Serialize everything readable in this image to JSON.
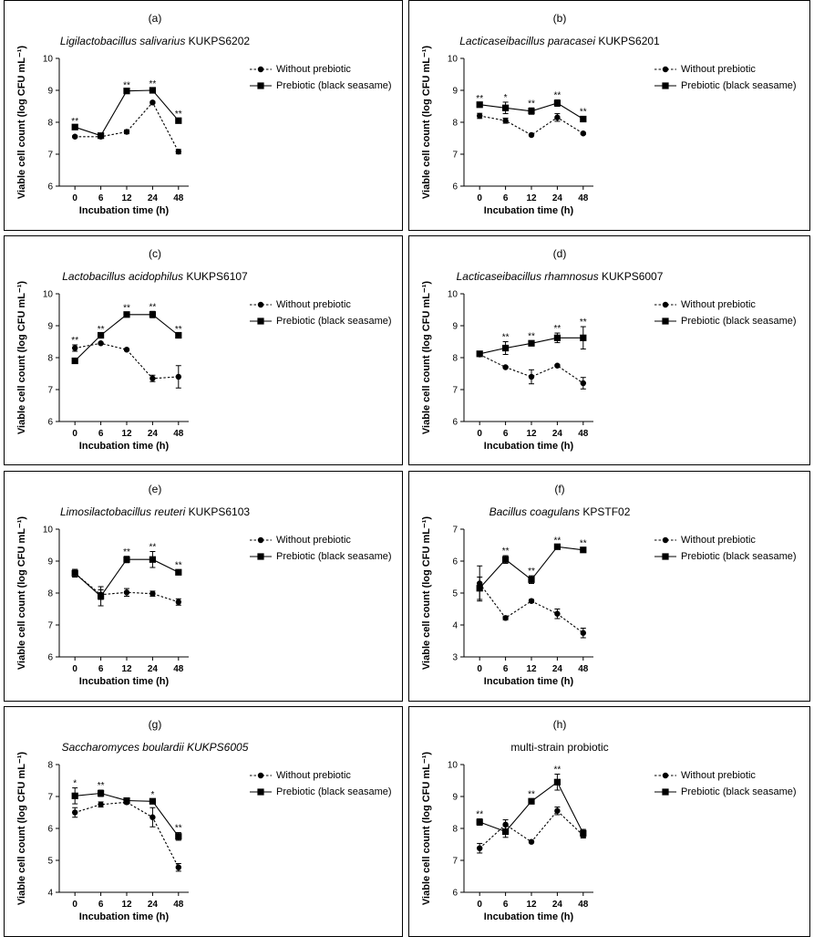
{
  "chart_data": [
    {
      "panel": "(a)",
      "species": "Ligilactobacillus salivarius",
      "strain": "KUKPS6202",
      "type": "line",
      "x": [
        "0",
        "6",
        "12",
        "24",
        "48"
      ],
      "xlabel": "Incubation time (h)",
      "ylabel": "Viable cell count (log CFU mL⁻¹)",
      "ylim": [
        6,
        10
      ],
      "yticks": [
        6,
        7,
        8,
        9,
        10
      ],
      "legend_position": "top-right",
      "series": [
        {
          "name": "Without prebiotic",
          "style": "dashed",
          "marker": "circle",
          "values": [
            7.55,
            7.55,
            7.7,
            8.62,
            7.08
          ],
          "errors": [
            0.03,
            0.03,
            0.06,
            0.03,
            0.07
          ]
        },
        {
          "name": "Prebiotic (black seasame)",
          "style": "solid",
          "marker": "square",
          "values": [
            7.85,
            7.58,
            8.98,
            9.0,
            8.05
          ],
          "errors": [
            0.04,
            0.03,
            0.04,
            0.06,
            0.06
          ]
        }
      ],
      "significance": [
        "**",
        "",
        "**",
        "**",
        "**"
      ]
    },
    {
      "panel": "(b)",
      "species": "Lacticaseibacillus paracasei",
      "strain": "KUKPS6201",
      "type": "line",
      "x": [
        "0",
        "6",
        "12",
        "24",
        "48"
      ],
      "xlabel": "Incubation time (h)",
      "ylabel": "Viable cell count (log CFU mL⁻¹)",
      "ylim": [
        6,
        10
      ],
      "yticks": [
        6,
        7,
        8,
        9,
        10
      ],
      "legend_position": "top-right",
      "series": [
        {
          "name": "Without prebiotic",
          "style": "dashed",
          "marker": "circle",
          "values": [
            8.2,
            8.05,
            7.6,
            8.15,
            7.65
          ],
          "errors": [
            0.08,
            0.08,
            0.03,
            0.12,
            0.03
          ]
        },
        {
          "name": "Prebiotic (black seasame)",
          "style": "solid",
          "marker": "square",
          "values": [
            8.55,
            8.45,
            8.35,
            8.6,
            8.1
          ],
          "errors": [
            0.05,
            0.18,
            0.1,
            0.1,
            0.08
          ]
        }
      ],
      "significance": [
        "**",
        "*",
        "**",
        "**",
        "**"
      ]
    },
    {
      "panel": "(c)",
      "species": "Lactobacillus acidophilus",
      "strain": "KUKPS6107",
      "type": "line",
      "x": [
        "0",
        "6",
        "12",
        "24",
        "48"
      ],
      "xlabel": "Incubation time (h)",
      "ylabel": "Viable cell count (log CFU mL⁻¹)",
      "ylim": [
        6,
        10
      ],
      "yticks": [
        6,
        7,
        8,
        9,
        10
      ],
      "legend_position": "top-right",
      "series": [
        {
          "name": "Without prebiotic",
          "style": "dashed",
          "marker": "circle",
          "values": [
            8.3,
            8.45,
            8.25,
            7.35,
            7.4
          ],
          "errors": [
            0.1,
            0.03,
            0.03,
            0.1,
            0.35
          ]
        },
        {
          "name": "Prebiotic (black seasame)",
          "style": "solid",
          "marker": "square",
          "values": [
            7.9,
            8.7,
            9.35,
            9.35,
            8.7
          ],
          "errors": [
            0.04,
            0.04,
            0.06,
            0.1,
            0.04
          ]
        }
      ],
      "significance": [
        "**",
        "**",
        "**",
        "**",
        "**"
      ]
    },
    {
      "panel": "(d)",
      "species": "Lacticaseibacillus rhamnosus",
      "strain": "KUKPS6007",
      "type": "line",
      "x": [
        "0",
        "6",
        "12",
        "24",
        "48"
      ],
      "xlabel": "Incubation time (h)",
      "ylabel": "Viable cell count (log CFU mL⁻¹)",
      "ylim": [
        6,
        10
      ],
      "yticks": [
        6,
        7,
        8,
        9,
        10
      ],
      "legend_position": "top-right",
      "series": [
        {
          "name": "Without prebiotic",
          "style": "dashed",
          "marker": "circle",
          "values": [
            8.1,
            7.7,
            7.4,
            7.75,
            7.2
          ],
          "errors": [
            0.03,
            0.03,
            0.22,
            0.03,
            0.18
          ]
        },
        {
          "name": "Prebiotic (black seasame)",
          "style": "solid",
          "marker": "square",
          "values": [
            8.12,
            8.3,
            8.45,
            8.62,
            8.62
          ],
          "errors": [
            0.04,
            0.2,
            0.08,
            0.15,
            0.35
          ]
        }
      ],
      "significance": [
        "",
        "**",
        "**",
        "**",
        "**"
      ]
    },
    {
      "panel": "(e)",
      "species": "Limosilactobacillus reuteri",
      "strain": "KUKPS6103",
      "type": "line",
      "x": [
        "0",
        "6",
        "12",
        "24",
        "48"
      ],
      "xlabel": "Incubation time (h)",
      "ylabel": "Viable cell count (log CFU mL⁻¹)",
      "ylim": [
        6,
        10
      ],
      "yticks": [
        6,
        7,
        8,
        9,
        10
      ],
      "legend_position": "top-right",
      "series": [
        {
          "name": "Without prebiotic",
          "style": "dashed",
          "marker": "circle",
          "values": [
            8.62,
            7.95,
            8.02,
            7.98,
            7.72
          ],
          "errors": [
            0.12,
            0.15,
            0.12,
            0.08,
            0.1
          ]
        },
        {
          "name": "Prebiotic (black seasame)",
          "style": "solid",
          "marker": "square",
          "values": [
            8.62,
            7.9,
            9.05,
            9.05,
            8.65
          ],
          "errors": [
            0.12,
            0.3,
            0.1,
            0.25,
            0.08
          ]
        }
      ],
      "significance": [
        "",
        "",
        "**",
        "**",
        "**"
      ]
    },
    {
      "panel": "(f)",
      "species": "Bacillus coagulans",
      "strain": "KPSTF02",
      "type": "line",
      "x": [
        "0",
        "6",
        "12",
        "24",
        "48"
      ],
      "xlabel": "Incubation time (h)",
      "ylabel": "Viable cell count (log CFU mL⁻¹)",
      "ylim": [
        3,
        7
      ],
      "yticks": [
        3,
        4,
        5,
        6,
        7
      ],
      "legend_position": "top-right",
      "series": [
        {
          "name": "Without prebiotic",
          "style": "dashed",
          "marker": "circle",
          "values": [
            5.3,
            4.22,
            4.75,
            4.35,
            3.75
          ],
          "errors": [
            0.55,
            0.06,
            0.05,
            0.15,
            0.15
          ]
        },
        {
          "name": "Prebiotic (black seasame)",
          "style": "solid",
          "marker": "square",
          "values": [
            5.15,
            6.05,
            5.42,
            6.45,
            6.35
          ],
          "errors": [
            0.35,
            0.12,
            0.12,
            0.05,
            0.06
          ]
        }
      ],
      "significance": [
        "",
        "**",
        "**",
        "**",
        "**"
      ]
    },
    {
      "panel": "(g)",
      "species": "Saccharomyces boulardii",
      "strain": "KUKPS6005",
      "strain_italic": true,
      "type": "line",
      "x": [
        "0",
        "6",
        "12",
        "24",
        "48"
      ],
      "xlabel": "Incubation time (h)",
      "ylabel": "Viable cell count (log CFU mL⁻¹)",
      "ylim": [
        4,
        8
      ],
      "yticks": [
        4,
        5,
        6,
        7,
        8
      ],
      "legend_position": "top-right",
      "series": [
        {
          "name": "Without prebiotic",
          "style": "dashed",
          "marker": "circle",
          "values": [
            6.5,
            6.75,
            6.82,
            6.35,
            4.78
          ],
          "errors": [
            0.15,
            0.08,
            0.05,
            0.3,
            0.12
          ]
        },
        {
          "name": "Prebiotic (black seasame)",
          "style": "solid",
          "marker": "square",
          "values": [
            7.02,
            7.1,
            6.87,
            6.85,
            5.75
          ],
          "errors": [
            0.25,
            0.1,
            0.05,
            0.06,
            0.12
          ]
        }
      ],
      "significance": [
        "*",
        "**",
        "",
        "*",
        "**"
      ]
    },
    {
      "panel": "(h)",
      "species": "",
      "strain": "multi-strain probiotic",
      "type": "line",
      "x": [
        "0",
        "6",
        "12",
        "24",
        "48"
      ],
      "xlabel": "Incubation time (h)",
      "ylabel": "Viable cell count (log CFU mL⁻¹)",
      "ylim": [
        6,
        10
      ],
      "yticks": [
        6,
        7,
        8,
        9,
        10
      ],
      "legend_position": "top-right",
      "series": [
        {
          "name": "Without prebiotic",
          "style": "dashed",
          "marker": "circle",
          "values": [
            7.38,
            8.12,
            7.58,
            8.55,
            7.78
          ],
          "errors": [
            0.15,
            0.15,
            0.03,
            0.12,
            0.08
          ]
        },
        {
          "name": "Prebiotic (black seasame)",
          "style": "solid",
          "marker": "square",
          "values": [
            8.2,
            7.9,
            8.85,
            9.45,
            7.85
          ],
          "errors": [
            0.1,
            0.18,
            0.08,
            0.25,
            0.12
          ]
        }
      ],
      "significance": [
        "**",
        "",
        "**",
        "**",
        ""
      ]
    }
  ]
}
